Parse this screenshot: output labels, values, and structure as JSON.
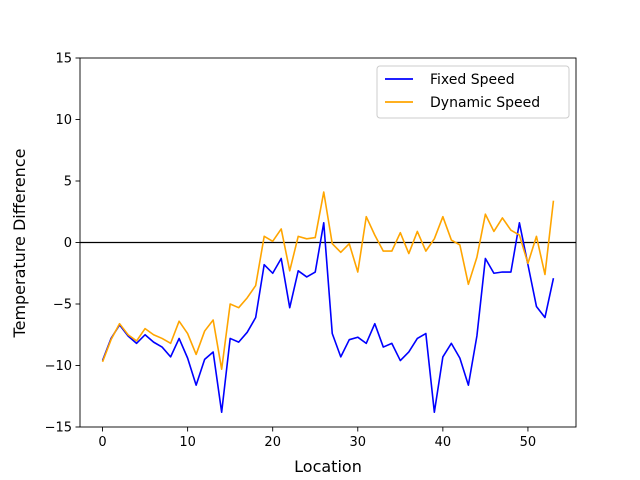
{
  "chart_data": {
    "type": "line",
    "title": "",
    "xlabel": "Location",
    "ylabel": "Temperature Difference",
    "xlim": [
      -2.65,
      55.65
    ],
    "ylim": [
      -15,
      15
    ],
    "xticks": [
      0,
      10,
      20,
      30,
      40,
      50
    ],
    "yticks": [
      -15,
      -10,
      -5,
      0,
      5,
      10,
      15
    ],
    "xtick_labels": [
      "0",
      "10",
      "20",
      "30",
      "40",
      "50"
    ],
    "ytick_labels": [
      "−15",
      "−10",
      "−5",
      "0",
      "5",
      "10",
      "15"
    ],
    "reference_line": {
      "y": 0,
      "color": "#000000"
    },
    "grid": false,
    "legend_position": "top-right",
    "x": [
      0,
      1,
      2,
      3,
      4,
      5,
      6,
      7,
      8,
      9,
      10,
      11,
      12,
      13,
      14,
      15,
      16,
      17,
      18,
      19,
      20,
      21,
      22,
      23,
      24,
      25,
      26,
      27,
      28,
      29,
      30,
      31,
      32,
      33,
      34,
      35,
      36,
      37,
      38,
      39,
      40,
      41,
      42,
      43,
      44,
      45,
      46,
      47,
      48,
      49,
      50,
      51,
      52,
      53
    ],
    "series": [
      {
        "name": "Fixed Speed",
        "color": "#0000ff",
        "values": [
          -9.6,
          -7.8,
          -6.7,
          -7.6,
          -8.2,
          -7.5,
          -8.1,
          -8.5,
          -9.3,
          -7.8,
          -9.4,
          -11.6,
          -9.5,
          -8.9,
          -13.8,
          -7.8,
          -8.1,
          -7.3,
          -6.1,
          -1.8,
          -2.5,
          -1.3,
          -5.3,
          -2.3,
          -2.8,
          -2.4,
          1.6,
          -7.4,
          -9.3,
          -7.9,
          -7.7,
          -8.2,
          -6.6,
          -8.5,
          -8.2,
          -9.6,
          -8.9,
          -7.8,
          -7.4,
          -13.8,
          -9.3,
          -8.2,
          -9.4,
          -11.6,
          -7.6,
          -1.3,
          -2.5,
          -2.4,
          -2.4,
          1.6,
          -1.8,
          -5.2,
          -6.1,
          -2.9
        ]
      },
      {
        "name": "Dynamic Speed",
        "color": "#ffa500",
        "values": [
          -9.7,
          -7.9,
          -6.6,
          -7.5,
          -8.0,
          -7.0,
          -7.5,
          -7.8,
          -8.2,
          -6.4,
          -7.4,
          -9.1,
          -7.2,
          -6.3,
          -10.3,
          -5.0,
          -5.3,
          -4.5,
          -3.5,
          0.5,
          0.1,
          1.1,
          -2.3,
          0.5,
          0.3,
          0.4,
          4.1,
          -0.1,
          -0.8,
          -0.1,
          -2.4,
          2.1,
          0.6,
          -0.7,
          -0.7,
          0.8,
          -0.9,
          0.9,
          -0.7,
          0.3,
          2.1,
          0.2,
          -0.2,
          -3.4,
          -1.2,
          2.3,
          0.9,
          2.0,
          1.0,
          0.6,
          -1.7,
          0.5,
          -2.6,
          3.4
        ]
      }
    ]
  }
}
